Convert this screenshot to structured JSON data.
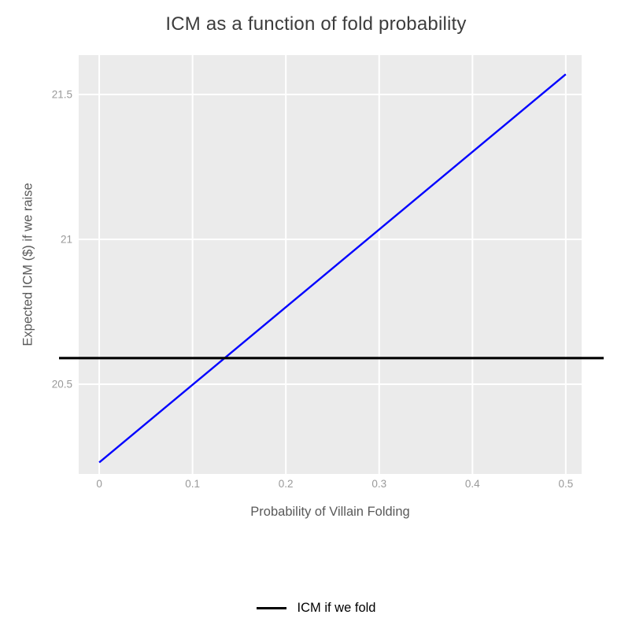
{
  "chart_data": {
    "type": "line",
    "title": "ICM as a function of fold probability",
    "xlabel": "Probability of Villain Folding",
    "ylabel": "Expected ICM ($) if we raise",
    "x_tick_values": [
      0,
      0.1,
      0.2,
      0.3,
      0.4,
      0.5
    ],
    "x_tick_labels": [
      "0",
      "0.1",
      "0.2",
      "0.3",
      "0.4",
      "0.5"
    ],
    "y_tick_values": [
      20.5,
      21,
      21.5
    ],
    "y_tick_labels": [
      "20.5",
      "21",
      "21.5"
    ],
    "xlim": [
      -0.022,
      0.517
    ],
    "ylim": [
      20.19,
      21.636
    ],
    "panel_bg": "#ebebeb",
    "grid": {
      "major": true,
      "minor": false,
      "color": "#ffffff",
      "width": 2
    },
    "series": [
      {
        "name": "Expected ICM ($) if we raise",
        "type": "line",
        "color": "#0000ff",
        "stroke_width": 2.4,
        "x": [
          0,
          0.5
        ],
        "y": [
          20.23,
          21.57
        ]
      },
      {
        "name": "ICM if we fold",
        "type": "hline",
        "color": "#000000",
        "stroke_width": 3.2,
        "y": 20.59
      }
    ],
    "legend": {
      "position": "bottom",
      "entries": [
        {
          "label": "ICM if we fold",
          "color": "#000000",
          "shape": "line"
        }
      ]
    }
  }
}
